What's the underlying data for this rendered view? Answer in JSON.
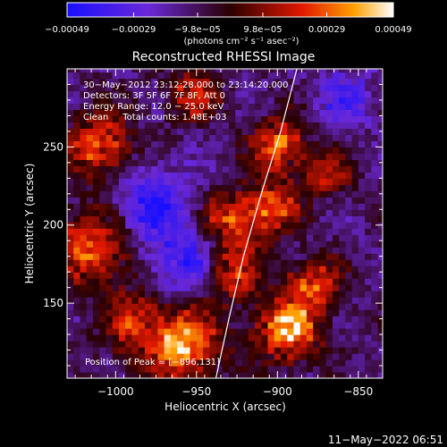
{
  "chart_data": {
    "type": "heatmap",
    "title": "Reconstructed RHESSI Image",
    "xlabel": "Heliocentric X (arcsec)",
    "ylabel": "Heliocentric Y (arcsec)",
    "xlim": [
      -1030,
      -835
    ],
    "ylim": [
      102,
      300
    ],
    "xticks": [
      -1000,
      -950,
      -900,
      -850
    ],
    "yticks": [
      150,
      200,
      250
    ],
    "xtick_labels": [
      "−1000",
      "−950",
      "−900",
      "−850"
    ],
    "ytick_labels": [
      "150",
      "200",
      "250"
    ],
    "colorbar": {
      "ticks": [
        -0.00049,
        -0.00029,
        -9.8e-05,
        9.8e-05,
        0.00029,
        0.00049
      ],
      "tick_labels": [
        "−0.00049",
        "−0.00029",
        "−9.8e−05",
        "9.8e−05",
        "0.00029",
        "0.00049"
      ],
      "range": [
        -0.00049,
        0.00049
      ],
      "units": "(photons cm⁻² s⁻¹ asec⁻²)"
    },
    "annotations": [
      "30−May−2012 23:12:28.000 to 23:14:20.000",
      "Detectors: 3F 5F 6F 7F 8F, Att 0",
      "Energy Range: 12.0 − 25.0 keV",
      "Clean     Total counts: 1.48E+03"
    ],
    "peak_label": "Position of Peak = [−896,131]",
    "peak": [
      -896,
      131
    ],
    "limb_curve": [
      [
        -938,
        102
      ],
      [
        -930,
        140
      ],
      [
        -921,
        180
      ],
      [
        -910,
        220
      ],
      [
        -898,
        260
      ],
      [
        -888,
        300
      ]
    ],
    "sources": [
      {
        "x": -1012,
        "y": 250,
        "v": 0.00042,
        "s": 14
      },
      {
        "x": -1015,
        "y": 185,
        "v": 0.00038,
        "s": 18
      },
      {
        "x": -990,
        "y": 135,
        "v": 0.0003,
        "s": 14
      },
      {
        "x": -960,
        "y": 122,
        "v": 0.00046,
        "s": 16
      },
      {
        "x": -930,
        "y": 200,
        "v": 0.00035,
        "s": 14
      },
      {
        "x": -930,
        "y": 165,
        "v": 0.0003,
        "s": 12
      },
      {
        "x": -900,
        "y": 250,
        "v": 0.0004,
        "s": 12
      },
      {
        "x": -905,
        "y": 210,
        "v": 0.00034,
        "s": 12
      },
      {
        "x": -896,
        "y": 131,
        "v": 0.00049,
        "s": 14
      },
      {
        "x": -880,
        "y": 160,
        "v": 0.00036,
        "s": 12
      },
      {
        "x": -870,
        "y": 230,
        "v": 0.0003,
        "s": 10
      },
      {
        "x": -955,
        "y": 282,
        "v": 0.00028,
        "s": 12
      },
      {
        "x": -980,
        "y": 210,
        "v": -0.0003,
        "s": 18
      },
      {
        "x": -960,
        "y": 175,
        "v": -0.00025,
        "s": 16
      },
      {
        "x": -860,
        "y": 280,
        "v": -0.0002,
        "s": 14
      }
    ],
    "grid": false
  },
  "footer": {
    "timestamp": "11−May−2022 06:51"
  }
}
